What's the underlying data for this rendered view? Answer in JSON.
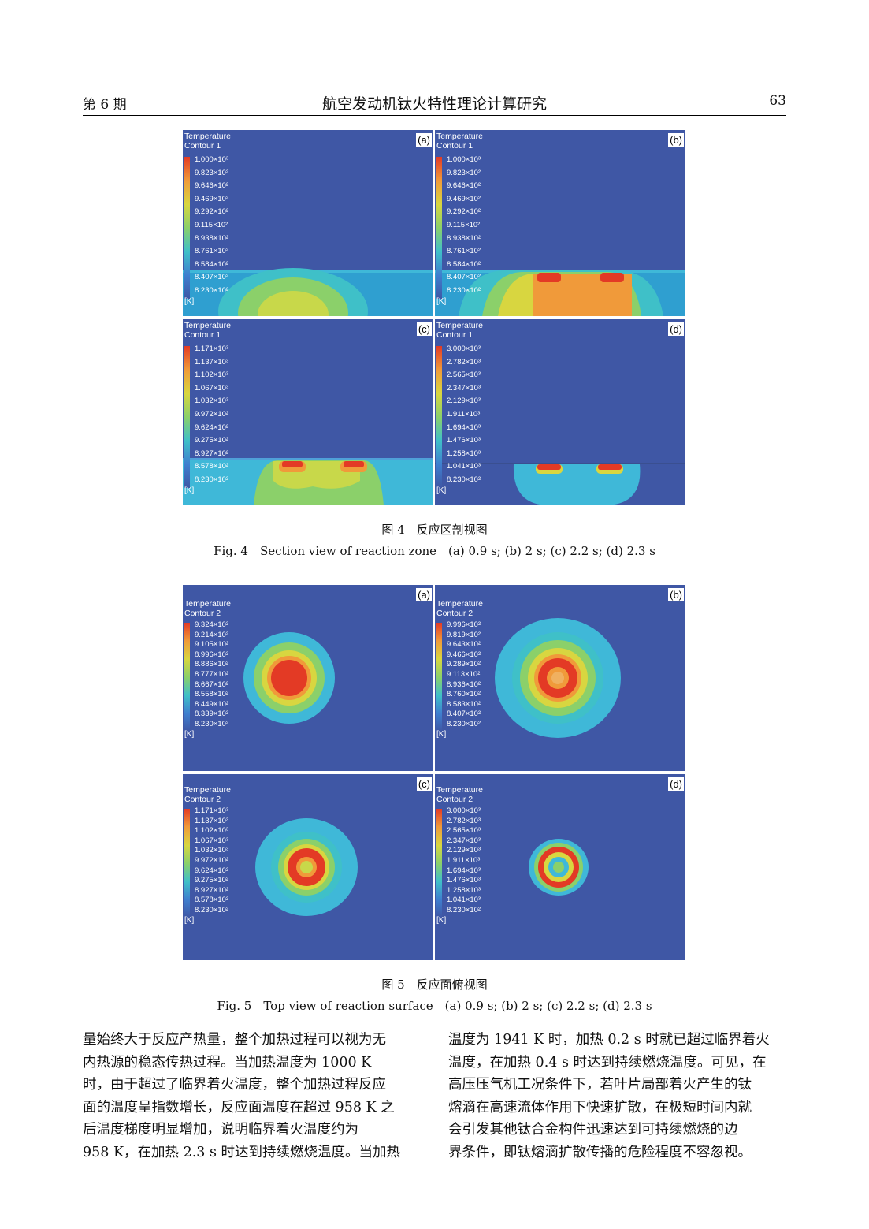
{
  "header": {
    "issue": "第 6 期",
    "title": "航空发动机钛火特性理论计算研究",
    "page": "63"
  },
  "fig4": {
    "caption_cn": "图 4　反应区剖视图",
    "caption_en": "Fig. 4　Section view of reaction zone　(a) 0.9 s; (b) 2 s; (c) 2.2 s; (d) 2.3 s",
    "panels": [
      {
        "label": "(a)",
        "legend_title1": "Temperature",
        "legend_title2": "Contour 1",
        "unit": "[K]",
        "ticks": [
          "1.000×10³",
          "9.823×10²",
          "9.646×10²",
          "9.469×10²",
          "9.292×10²",
          "9.115×10²",
          "8.938×10²",
          "8.761×10²",
          "8.584×10²",
          "8.407×10²",
          "8.230×10²"
        ]
      },
      {
        "label": "(b)",
        "legend_title1": "Temperature",
        "legend_title2": "Contour 1",
        "unit": "[K]",
        "ticks": [
          "1.000×10³",
          "9.823×10²",
          "9.646×10²",
          "9.469×10²",
          "9.292×10²",
          "9.115×10²",
          "8.938×10²",
          "8.761×10²",
          "8.584×10²",
          "8.407×10²",
          "8.230×10²"
        ]
      },
      {
        "label": "(c)",
        "legend_title1": "Temperature",
        "legend_title2": "Contour 1",
        "unit": "[K]",
        "ticks": [
          "1.171×10³",
          "1.137×10³",
          "1.102×10³",
          "1.067×10³",
          "1.032×10³",
          "9.972×10²",
          "9.624×10²",
          "9.275×10²",
          "8.927×10²",
          "8.578×10²",
          "8.230×10²"
        ]
      },
      {
        "label": "(d)",
        "legend_title1": "Temperature",
        "legend_title2": "Contour 1",
        "unit": "[K]",
        "ticks": [
          "3.000×10³",
          "2.782×10³",
          "2.565×10³",
          "2.347×10³",
          "2.129×10³",
          "1.911×10³",
          "1.694×10³",
          "1.476×10³",
          "1.258×10³",
          "1.041×10³",
          "8.230×10²"
        ]
      }
    ]
  },
  "fig5": {
    "caption_cn": "图 5　反应面俯视图",
    "caption_en": "Fig. 5　Top view of reaction surface　(a) 0.9 s; (b) 2 s; (c) 2.2 s; (d) 2.3 s",
    "panels": [
      {
        "label": "(a)",
        "legend_title1": "Temperature",
        "legend_title2": "Contour 2",
        "unit": "[K]",
        "ticks": [
          "9.324×10²",
          "9.214×10²",
          "9.105×10²",
          "8.996×10²",
          "8.886×10²",
          "8.777×10²",
          "8.667×10²",
          "8.558×10²",
          "8.449×10²",
          "8.339×10²",
          "8.230×10²"
        ]
      },
      {
        "label": "(b)",
        "legend_title1": "Temperature",
        "legend_title2": "Contour 2",
        "unit": "[K]",
        "ticks": [
          "9.996×10²",
          "9.819×10²",
          "9.643×10²",
          "9.466×10²",
          "9.289×10²",
          "9.113×10²",
          "8.936×10²",
          "8.760×10²",
          "8.583×10²",
          "8.407×10²",
          "8.230×10²"
        ]
      },
      {
        "label": "(c)",
        "legend_title1": "Temperature",
        "legend_title2": "Contour 2",
        "unit": "[K]",
        "ticks": [
          "1.171×10³",
          "1.137×10³",
          "1.102×10³",
          "1.067×10³",
          "1.032×10³",
          "9.972×10²",
          "9.624×10²",
          "9.275×10²",
          "8.927×10²",
          "8.578×10²",
          "8.230×10²"
        ]
      },
      {
        "label": "(d)",
        "legend_title1": "Temperature",
        "legend_title2": "Contour 2",
        "unit": "[K]",
        "ticks": [
          "3.000×10³",
          "2.782×10³",
          "2.565×10³",
          "2.347×10³",
          "2.129×10³",
          "1.911×10³",
          "1.694×10³",
          "1.476×10³",
          "1.258×10³",
          "1.041×10³",
          "8.230×10²"
        ]
      }
    ]
  },
  "body_left": [
    "量始终大于反应产热量，整个加热过程可以视为无",
    "内热源的稳态传热过程。当加热温度为 1000 K",
    "时，由于超过了临界着火温度，整个加热过程反应",
    "面的温度呈指数增长，反应面温度在超过 958 K 之",
    "后温度梯度明显增加，说明临界着火温度约为",
    "958 K，在加热 2.3 s 时达到持续燃烧温度。当加热"
  ],
  "body_right": [
    "温度为 1941 K 时，加热 0.2 s 时就已超过临界着火",
    "温度，在加热 0.4 s 时达到持续燃烧温度。可见，在",
    "高压压气机工况条件下，若叶片局部着火产生的钛",
    "熔滴在高速流体作用下快速扩散，在极短时间内就",
    "会引发其他钛合金构件迅速达到可持续燃烧的边",
    "界条件，即钛熔滴扩散传播的危险程度不容忽视。"
  ],
  "colors": {
    "background": "#3f57a5",
    "cyan": "#3fb8d8",
    "green": "#8bd06a",
    "yellow": "#d8d640",
    "orange": "#f09a3a",
    "red": "#e33a25"
  }
}
